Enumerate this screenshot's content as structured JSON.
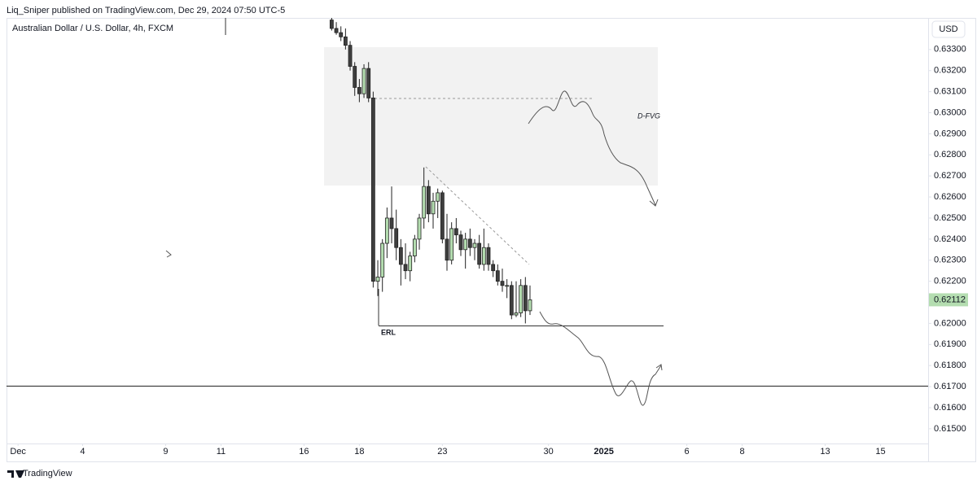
{
  "header": {
    "publisher": "Liq_Sniper published on TradingView.com, Dec 29, 2024 07:50 UTC-5"
  },
  "chart_data": {
    "type": "candlestick",
    "title": "Australian Dollar / U.S. Dollar, 4h, FXCM",
    "currency": "USD",
    "x": [
      68,
      69,
      70,
      71,
      72,
      73,
      74,
      75,
      76,
      77,
      78,
      79,
      80,
      81,
      82,
      83,
      84,
      85,
      86,
      87,
      88,
      89,
      90,
      91,
      92,
      93,
      94,
      95,
      96,
      97,
      98,
      99,
      100,
      101,
      102,
      103,
      104,
      105,
      106,
      107,
      108,
      109,
      110,
      111
    ],
    "open": [
      0.6344,
      0.634,
      0.6338,
      0.6336,
      0.6332,
      0.6322,
      0.6312,
      0.6309,
      0.6321,
      0.6307,
      0.622,
      0.6222,
      0.6238,
      0.625,
      0.6245,
      0.6236,
      0.6228,
      0.6225,
      0.6232,
      0.624,
      0.625,
      0.6265,
      0.6252,
      0.6258,
      0.6262,
      0.624,
      0.623,
      0.6245,
      0.6242,
      0.6235,
      0.624,
      0.6236,
      0.6238,
      0.6228,
      0.6236,
      0.6228,
      0.6225,
      0.622,
      0.6218,
      0.6218,
      0.6204,
      0.6205,
      0.6218,
      0.6206
    ],
    "high": [
      0.6345,
      0.6343,
      0.6341,
      0.634,
      0.6334,
      0.6324,
      0.6316,
      0.6323,
      0.6324,
      0.631,
      0.623,
      0.624,
      0.6255,
      0.6265,
      0.6254,
      0.624,
      0.6238,
      0.6234,
      0.6242,
      0.6252,
      0.6274,
      0.6268,
      0.6262,
      0.6264,
      0.6263,
      0.6252,
      0.6248,
      0.625,
      0.6244,
      0.6243,
      0.6245,
      0.624,
      0.6242,
      0.6245,
      0.6238,
      0.623,
      0.6228,
      0.6226,
      0.6221,
      0.622,
      0.622,
      0.6221,
      0.6222,
      0.6218
    ],
    "low": [
      0.6339,
      0.6337,
      0.6334,
      0.633,
      0.632,
      0.6308,
      0.6305,
      0.6307,
      0.6305,
      0.6217,
      0.6213,
      0.6215,
      0.6231,
      0.6238,
      0.623,
      0.6218,
      0.6221,
      0.622,
      0.6229,
      0.6235,
      0.6245,
      0.6248,
      0.6245,
      0.625,
      0.6238,
      0.6225,
      0.6228,
      0.6238,
      0.6232,
      0.6226,
      0.6232,
      0.623,
      0.6226,
      0.6225,
      0.6225,
      0.6222,
      0.6218,
      0.6215,
      0.6212,
      0.6202,
      0.6203,
      0.6203,
      0.62,
      0.6204
    ],
    "close": [
      0.634,
      0.6338,
      0.6336,
      0.6332,
      0.6322,
      0.6312,
      0.6309,
      0.6321,
      0.6307,
      0.622,
      0.6222,
      0.6238,
      0.625,
      0.6245,
      0.6236,
      0.6228,
      0.6225,
      0.6232,
      0.624,
      0.625,
      0.6265,
      0.6252,
      0.6258,
      0.6262,
      0.624,
      0.623,
      0.6245,
      0.6242,
      0.6235,
      0.624,
      0.6236,
      0.6238,
      0.6228,
      0.6236,
      0.6228,
      0.6225,
      0.622,
      0.6218,
      0.6218,
      0.6204,
      0.6205,
      0.6218,
      0.6206,
      0.62112
    ],
    "up_color": "#b4ddb0",
    "down_color": "#3f3f3f",
    "last_price": {
      "value": 0.62112,
      "label": "0.62112"
    },
    "xlim": [
      -2.5,
      197.5
    ],
    "ylim": [
      0.6143,
      0.6345
    ],
    "xticks": [
      {
        "value": 0,
        "label": "Dec"
      },
      {
        "value": 14,
        "label": "4"
      },
      {
        "value": 32,
        "label": "9"
      },
      {
        "value": 44,
        "label": "11"
      },
      {
        "value": 62,
        "label": "16"
      },
      {
        "value": 74,
        "label": "18"
      },
      {
        "value": 92,
        "label": "23"
      },
      {
        "value": 115,
        "label": "30"
      },
      {
        "value": 127,
        "label": "2025"
      },
      {
        "value": 145,
        "label": "6"
      },
      {
        "value": 157,
        "label": "8"
      },
      {
        "value": 175,
        "label": "13"
      },
      {
        "value": 187,
        "label": "15"
      }
    ],
    "yticks": [
      {
        "value": 0.633,
        "label": "0.63300"
      },
      {
        "value": 0.632,
        "label": "0.63200"
      },
      {
        "value": 0.631,
        "label": "0.63100"
      },
      {
        "value": 0.63,
        "label": "0.63000"
      },
      {
        "value": 0.629,
        "label": "0.62900"
      },
      {
        "value": 0.628,
        "label": "0.62800"
      },
      {
        "value": 0.627,
        "label": "0.62700"
      },
      {
        "value": 0.626,
        "label": "0.62600"
      },
      {
        "value": 0.625,
        "label": "0.62500"
      },
      {
        "value": 0.624,
        "label": "0.62400"
      },
      {
        "value": 0.623,
        "label": "0.62300"
      },
      {
        "value": 0.622,
        "label": "0.62200"
      },
      {
        "value": 0.62,
        "label": "0.62000"
      },
      {
        "value": 0.619,
        "label": "0.61900"
      },
      {
        "value": 0.618,
        "label": "0.61800"
      },
      {
        "value": 0.617,
        "label": "0.61700"
      },
      {
        "value": 0.616,
        "label": "0.61600"
      },
      {
        "value": 0.615,
        "label": "0.61500"
      }
    ],
    "annotations": {
      "zone": "D-FVG",
      "level": "ERL"
    }
  },
  "footer": {
    "brand": "TradingView"
  }
}
